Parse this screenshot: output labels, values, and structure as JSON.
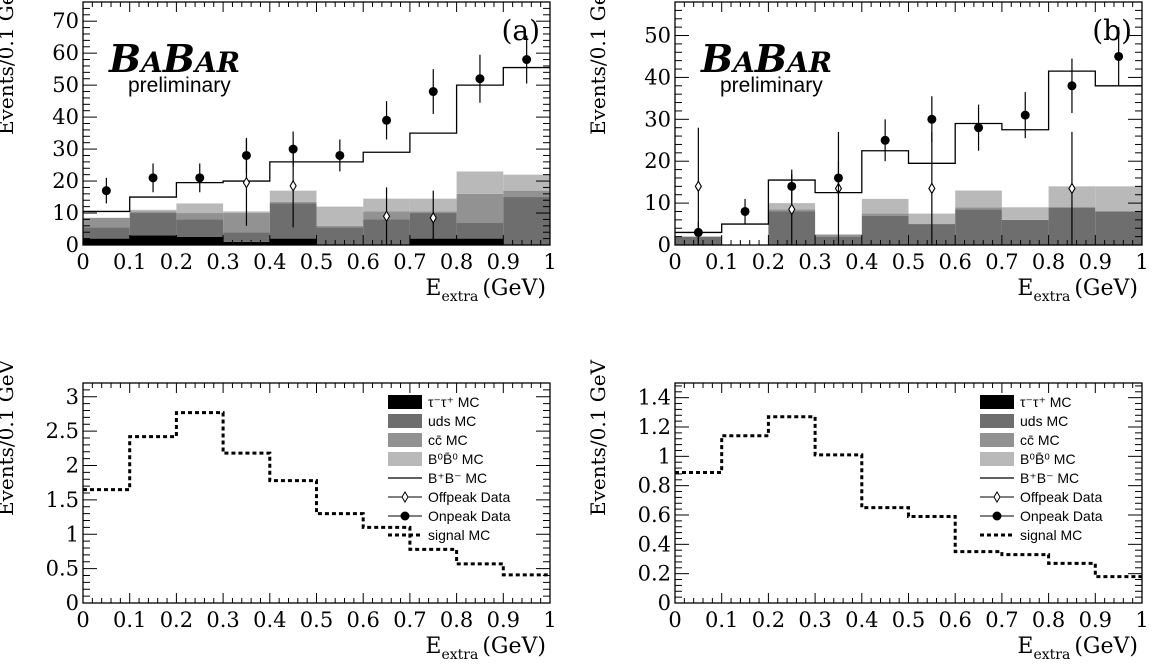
{
  "chart_data": [
    {
      "type": "bar",
      "panel_label": "(a)",
      "brand": {
        "b1": "B",
        "a1": "A",
        "b2": "B",
        "ar": "AR"
      },
      "subtitle": "preliminary",
      "xlabel": {
        "main": "E",
        "sub": "extra",
        "unit": "(GeV)"
      },
      "ylabel": "Events/0.1 GeV",
      "xlim": [
        0,
        1
      ],
      "ylim": [
        0,
        76
      ],
      "x_ticks": [
        "0",
        "0.1",
        "0.2",
        "0.3",
        "0.4",
        "0.5",
        "0.6",
        "0.7",
        "0.8",
        "0.9",
        "1"
      ],
      "y_ticks": [
        "0",
        "10",
        "20",
        "30",
        "40",
        "50",
        "60",
        "70"
      ],
      "categories": [
        "0.0-0.1",
        "0.1-0.2",
        "0.2-0.3",
        "0.3-0.4",
        "0.4-0.5",
        "0.5-0.6",
        "0.6-0.7",
        "0.7-0.8",
        "0.8-0.9",
        "0.9-1.0"
      ],
      "series": [
        {
          "name": "τ⁻τ⁺ MC",
          "kind": "stack",
          "color": "#000000",
          "values": [
            2,
            3,
            2.5,
            1,
            2,
            0,
            0,
            2,
            2,
            0
          ]
        },
        {
          "name": "uds MC",
          "kind": "stack",
          "color": "#6e6e6e",
          "values": [
            3.5,
            7,
            5.5,
            3,
            11,
            5.5,
            8,
            8,
            5,
            15
          ]
        },
        {
          "name": "cc̄ MC",
          "kind": "stack",
          "color": "#929292",
          "values": [
            3,
            0.5,
            2,
            6,
            0.5,
            0.5,
            2.5,
            0.5,
            9,
            2
          ]
        },
        {
          "name": "B⁰B̄⁰ MC",
          "kind": "stack",
          "color": "#b9b9b9",
          "values": [
            0,
            0.5,
            3,
            0.5,
            3.5,
            6,
            4,
            4,
            7,
            5
          ]
        },
        {
          "name": "B⁺B⁻ MC",
          "kind": "step",
          "values": [
            10.5,
            15,
            19.5,
            20,
            26,
            26,
            29,
            35,
            50,
            55.5
          ]
        },
        {
          "name": "Offpeak Data",
          "kind": "open-points",
          "x": [
            0.35,
            0.45,
            0.65,
            0.75
          ],
          "y": [
            19.5,
            18.5,
            9,
            8.5
          ],
          "err": [
            13.5,
            13,
            9,
            8.5
          ]
        },
        {
          "name": "Onpeak Data",
          "kind": "points",
          "x": [
            0.05,
            0.15,
            0.25,
            0.35,
            0.45,
            0.55,
            0.65,
            0.75,
            0.85,
            0.95
          ],
          "y": [
            17,
            21,
            21,
            28,
            30,
            28,
            39,
            48,
            52,
            58
          ],
          "err": [
            4,
            4.5,
            4.5,
            5.5,
            5.5,
            5,
            6,
            7,
            7.5,
            7.5
          ]
        }
      ]
    },
    {
      "type": "bar",
      "panel_label": "(b)",
      "brand": {
        "b1": "B",
        "a1": "A",
        "b2": "B",
        "ar": "AR"
      },
      "subtitle": "preliminary",
      "xlabel": {
        "main": "E",
        "sub": "extra",
        "unit": "(GeV)"
      },
      "ylabel": "Events/0.1 GeV",
      "xlim": [
        0,
        1
      ],
      "ylim": [
        0,
        58
      ],
      "x_ticks": [
        "0",
        "0.1",
        "0.2",
        "0.3",
        "0.4",
        "0.5",
        "0.6",
        "0.7",
        "0.8",
        "0.9",
        "1"
      ],
      "y_ticks": [
        "0",
        "10",
        "20",
        "30",
        "40",
        "50"
      ],
      "categories": [
        "0.0-0.1",
        "0.1-0.2",
        "0.2-0.3",
        "0.3-0.4",
        "0.4-0.5",
        "0.5-0.6",
        "0.6-0.7",
        "0.7-0.8",
        "0.8-0.9",
        "0.9-1.0"
      ],
      "series": [
        {
          "name": "τ⁻τ⁺ MC",
          "kind": "stack",
          "color": "#000000",
          "values": [
            0,
            0,
            0,
            0,
            0,
            0,
            0,
            0,
            0,
            0
          ]
        },
        {
          "name": "uds MC",
          "kind": "stack",
          "color": "#6e6e6e",
          "values": [
            2,
            0,
            8,
            2,
            7,
            5,
            8.5,
            6,
            9,
            8
          ]
        },
        {
          "name": "cc̄ MC",
          "kind": "stack",
          "color": "#929292",
          "values": [
            0,
            0,
            0.5,
            0.5,
            0.5,
            0,
            0.5,
            0,
            0,
            0
          ]
        },
        {
          "name": "B⁰B̄⁰ MC",
          "kind": "stack",
          "color": "#b9b9b9",
          "values": [
            0,
            0,
            1.5,
            0,
            3.5,
            2.5,
            4,
            3,
            5,
            6
          ]
        },
        {
          "name": "B⁺B⁻ MC",
          "kind": "step",
          "values": [
            3,
            5,
            15.5,
            12.5,
            22.5,
            19.5,
            29,
            27.5,
            41.5,
            38
          ]
        },
        {
          "name": "Offpeak Data",
          "kind": "open-points",
          "x": [
            0.05,
            0.25,
            0.35,
            0.55,
            0.85
          ],
          "y": [
            14,
            8.5,
            13.5,
            13.5,
            13.5
          ],
          "err": [
            14,
            8.5,
            13.5,
            13.5,
            13.5
          ]
        },
        {
          "name": "Onpeak Data",
          "kind": "points",
          "x": [
            0.05,
            0.15,
            0.25,
            0.35,
            0.45,
            0.55,
            0.65,
            0.75,
            0.85,
            0.95
          ],
          "y": [
            3,
            8,
            14,
            16,
            25,
            30,
            28,
            31,
            38,
            45
          ],
          "err": [
            2.5,
            3,
            4,
            4,
            5,
            5.5,
            5.5,
            5.5,
            6.5,
            7
          ]
        }
      ]
    },
    {
      "type": "line",
      "xlabel": {
        "main": "E",
        "sub": "extra",
        "unit": "(GeV)"
      },
      "ylabel": "Events/0.1 GeV",
      "xlim": [
        0,
        1
      ],
      "ylim": [
        0,
        3.2
      ],
      "x_ticks": [
        "0",
        "0.1",
        "0.2",
        "0.3",
        "0.4",
        "0.5",
        "0.6",
        "0.7",
        "0.8",
        "0.9",
        "1"
      ],
      "y_ticks": [
        "0",
        "0.5",
        "1",
        "1.5",
        "2",
        "2.5",
        "3"
      ],
      "legend": [
        {
          "label": "τ⁻τ⁺ MC",
          "marker": "box",
          "color": "#000000"
        },
        {
          "label": "uds MC",
          "marker": "box",
          "color": "#6e6e6e"
        },
        {
          "label": "cc̄ MC",
          "marker": "box",
          "color": "#929292"
        },
        {
          "label": "B⁰B̄⁰ MC",
          "marker": "box",
          "color": "#b9b9b9"
        },
        {
          "label": "B⁺B⁻ MC",
          "marker": "line",
          "color": "#000000"
        },
        {
          "label": "Offpeak Data",
          "marker": "open-diamond",
          "color": "#000000"
        },
        {
          "label": "Onpeak Data",
          "marker": "dot",
          "color": "#000000"
        },
        {
          "label": "signal MC",
          "marker": "dash",
          "color": "#000000"
        }
      ],
      "series": [
        {
          "name": "signal MC",
          "kind": "dashed-step",
          "values": [
            1.65,
            2.42,
            2.77,
            2.18,
            1.78,
            1.3,
            1.1,
            0.78,
            0.57,
            0.41
          ]
        }
      ]
    },
    {
      "type": "line",
      "xlabel": {
        "main": "E",
        "sub": "extra",
        "unit": "(GeV)"
      },
      "ylabel": "Events/0.1 GeV",
      "xlim": [
        0,
        1
      ],
      "ylim": [
        0,
        1.5
      ],
      "x_ticks": [
        "0",
        "0.1",
        "0.2",
        "0.3",
        "0.4",
        "0.5",
        "0.6",
        "0.7",
        "0.8",
        "0.9",
        "1"
      ],
      "y_ticks": [
        "0",
        "0.2",
        "0.4",
        "0.6",
        "0.8",
        "1",
        "1.2",
        "1.4"
      ],
      "legend": [
        {
          "label": "τ⁻τ⁺ MC",
          "marker": "box",
          "color": "#000000"
        },
        {
          "label": "uds MC",
          "marker": "box",
          "color": "#6e6e6e"
        },
        {
          "label": "cc̄ MC",
          "marker": "box",
          "color": "#929292"
        },
        {
          "label": "B⁰B̄⁰ MC",
          "marker": "box",
          "color": "#b9b9b9"
        },
        {
          "label": "B⁺B⁻ MC",
          "marker": "line",
          "color": "#000000"
        },
        {
          "label": "Offpeak Data",
          "marker": "open-diamond",
          "color": "#000000"
        },
        {
          "label": "Onpeak Data",
          "marker": "dot",
          "color": "#000000"
        },
        {
          "label": "signal MC",
          "marker": "dash",
          "color": "#000000"
        }
      ],
      "series": [
        {
          "name": "signal MC",
          "kind": "dashed-step",
          "values": [
            0.89,
            1.14,
            1.27,
            1.01,
            0.65,
            0.59,
            0.35,
            0.33,
            0.27,
            0.18
          ]
        }
      ]
    }
  ]
}
